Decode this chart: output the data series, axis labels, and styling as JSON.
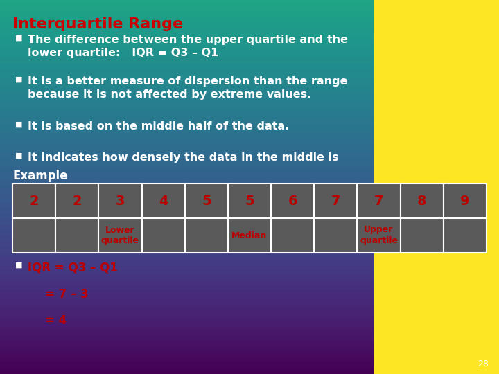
{
  "title": "Interquartile Range",
  "title_color": "#cc0000",
  "bullets": [
    "The difference between the upper quartile and the\nlower quartile:   IQR = Q3 – Q1",
    "It is a better measure of dispersion than the range\nbecause it is not affected by extreme values.",
    "It is based on the middle half of the data.",
    "It indicates how densely the data in the middle is"
  ],
  "example_label": "Example",
  "table_values": [
    "2",
    "2",
    "3",
    "4",
    "5",
    "5",
    "6",
    "7",
    "7",
    "8",
    "9"
  ],
  "table_label_indices": [
    2,
    5,
    8
  ],
  "table_labels_text": [
    "Lower\nquartile",
    "Median",
    "Upper\nquartile"
  ],
  "iqr_lines": [
    "IQR = Q3 – Q1",
    "= 7 – 3",
    "= 4"
  ],
  "text_color": "#ffffff",
  "red_color": "#bb0000",
  "table_border_color": "#ffffff",
  "table_cell_color": "#5a5a5a",
  "bullet_marker": "■",
  "page_number": "28",
  "bg_light": "#aaaaaa",
  "bg_dark": "#3a3a3a"
}
